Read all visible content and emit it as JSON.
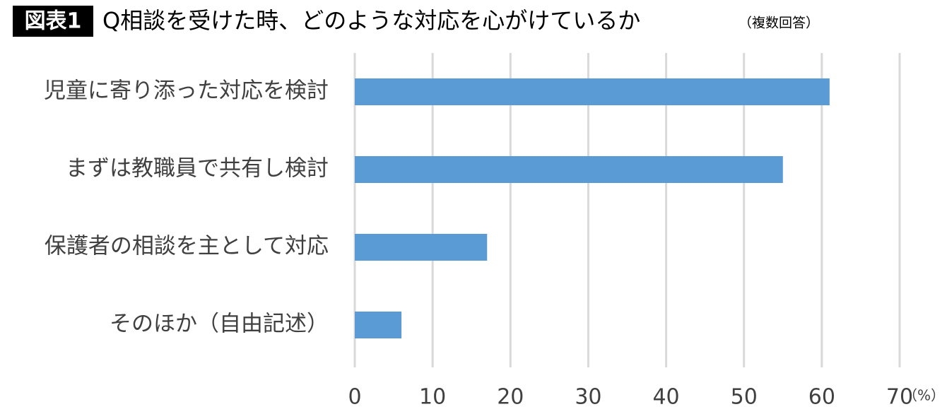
{
  "chart_data": {
    "type": "hbar",
    "badge": "図表1",
    "title": "Q相談を受けた時、どのような対応を心がけているか",
    "subtitle": "（複数回答）",
    "unit_label": "（%）",
    "categories": [
      "児童に寄り添った対応を検討",
      "まずは教職員で共有し検討",
      "保護者の相談を主として対応",
      "そのほか（自由記述）"
    ],
    "values": [
      61,
      55,
      17,
      6
    ],
    "color": "#5b9bd5",
    "xlim": [
      0,
      70
    ],
    "xticks": [
      0,
      10,
      20,
      30,
      40,
      50,
      60,
      70
    ],
    "grid": true
  }
}
